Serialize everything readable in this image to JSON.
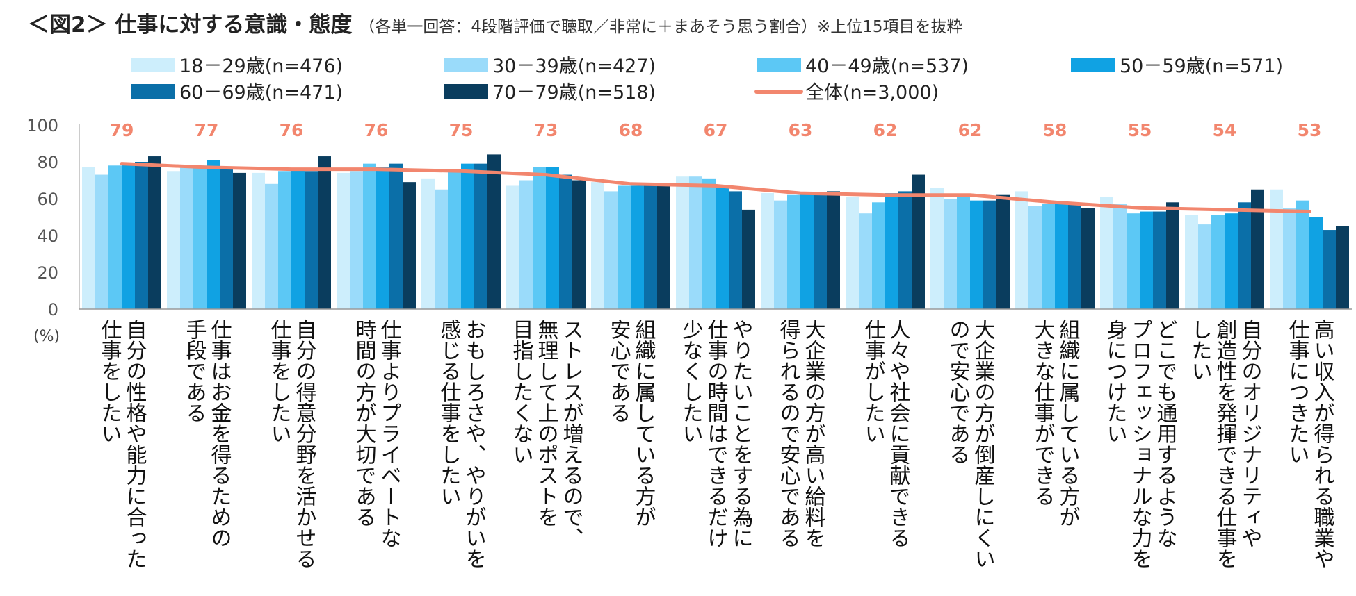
{
  "title": {
    "main": "＜図2＞ 仕事に対する意識・態度",
    "note": "（各単一回答：4段階評価で聴取／非常に＋まあそう思う割合）※上位15項目を抜粋"
  },
  "chart_data": {
    "type": "bar",
    "unit_label": "(%)",
    "ylim": [
      0,
      100
    ],
    "y_ticks": [
      "0",
      "20",
      "40",
      "60",
      "80",
      "100"
    ],
    "categories": [
      [
        "自分の性格や能力に合った",
        "仕事をしたい"
      ],
      [
        "仕事はお金を得るための",
        "手段である"
      ],
      [
        "自分の得意分野を活かせる",
        "仕事をしたい"
      ],
      [
        "仕事よりプライベートな",
        "時間の方が大切である"
      ],
      [
        "おもしろさや、やりがいを",
        "感じる仕事をしたい"
      ],
      [
        "ストレスが増えるので、",
        "無理して上のポストを",
        "目指したくない"
      ],
      [
        "組織に属している方が",
        "安心である"
      ],
      [
        "やりたいことをする為に",
        "仕事の時間はできるだけ",
        "少なくしたい"
      ],
      [
        "大企業の方が高い給料を",
        "得られるので安心である"
      ],
      [
        "人々や社会に貢献できる",
        "仕事がしたい"
      ],
      [
        "大企業の方が倒産しにくい",
        "ので安心である"
      ],
      [
        "組織に属している方が",
        "大きな仕事ができる"
      ],
      [
        "どこでも通用するような",
        "プロフェッショナルな力を",
        "身につけたい"
      ],
      [
        "自分のオリジナリティや",
        "創造性を発揮できる仕事を",
        "したい"
      ],
      [
        "高い収入が得られる職業や",
        "仕事につきたい"
      ]
    ],
    "series": [
      {
        "name": "18－29歳(n=476)",
        "color": "#CDEEFC",
        "values": [
          77,
          75,
          74,
          74,
          71,
          67,
          69,
          72,
          63,
          61,
          66,
          64,
          61,
          51,
          65
        ]
      },
      {
        "name": "30－39歳(n=427)",
        "color": "#9ADBFA",
        "values": [
          73,
          77,
          68,
          75,
          65,
          70,
          64,
          72,
          59,
          52,
          60,
          56,
          57,
          46,
          55
        ]
      },
      {
        "name": "40－49歳(n=537)",
        "color": "#5CC8F5",
        "values": [
          78,
          78,
          75,
          79,
          75,
          77,
          67,
          71,
          62,
          58,
          62,
          57,
          52,
          51,
          59
        ]
      },
      {
        "name": "50－59歳(n=571)",
        "color": "#10A2E3",
        "values": [
          79,
          81,
          76,
          77,
          79,
          77,
          67,
          66,
          63,
          63,
          59,
          57,
          53,
          52,
          50
        ]
      },
      {
        "name": "60－69歳(n=471)",
        "color": "#0B6FA8",
        "values": [
          80,
          76,
          75,
          79,
          79,
          73,
          67,
          64,
          63,
          64,
          59,
          57,
          53,
          58,
          43
        ]
      },
      {
        "name": "70－79歳(n=518)",
        "color": "#0A3D5E",
        "values": [
          83,
          74,
          83,
          69,
          84,
          70,
          67,
          54,
          64,
          73,
          62,
          55,
          58,
          65,
          45
        ]
      }
    ],
    "total": {
      "name": "全体(n=3,000)",
      "color": "#F2866E",
      "values": [
        79,
        77,
        76,
        76,
        75,
        73,
        68,
        67,
        63,
        62,
        62,
        58,
        55,
        54,
        53
      ]
    }
  }
}
